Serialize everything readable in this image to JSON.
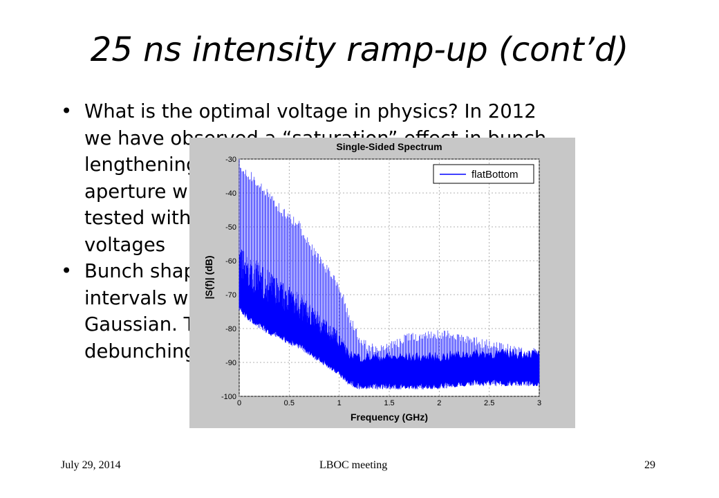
{
  "slide": {
    "title": "25 ns intensity ramp-up (cont’d)",
    "bullets": [
      {
        "lines": [
          "What is the optimal voltage in physics? In 2012",
          "we have observed a “saturation” effect in bunch",
          "lengthening and losses from the momentum",
          "aperture when the voltage was raised. To be",
          "tested with the bunch length at different",
          "voltages"
        ]
      },
      {
        "lines": [
          "Bunch shape — flat bottom profile at regular",
          "intervals when no BU... shapes return to",
          "Gaussian. The small... will increase the risk of",
          "debunching..."
        ]
      }
    ],
    "footer": {
      "date": "July 29, 2014",
      "event": "LBOC meeting",
      "page": "29"
    }
  },
  "chart_data": {
    "type": "line",
    "title": "Single-Sided Spectrum",
    "xlabel": "Frequency (GHz)",
    "ylabel": "|S(f)| (dB)",
    "xlim": [
      0,
      3
    ],
    "ylim": [
      -100,
      -30
    ],
    "xticks": [
      "0",
      "0.5",
      "1",
      "1.5",
      "2",
      "2.5",
      "3"
    ],
    "yticks": [
      "-30",
      "-40",
      "-50",
      "-60",
      "-70",
      "-80",
      "-90",
      "-100"
    ],
    "grid": true,
    "legend": "top-right",
    "series": [
      {
        "name": "flatBottom",
        "color": "#0000ff",
        "x": [
          0,
          0.1,
          0.2,
          0.3,
          0.4,
          0.5,
          0.6,
          0.7,
          0.8,
          0.9,
          1.0,
          1.1,
          1.2,
          1.3,
          1.5,
          1.7,
          2.0,
          2.3,
          2.6,
          3.0
        ],
        "upper": [
          -30,
          -33,
          -36,
          -39,
          -43,
          -46,
          -48,
          -54,
          -58,
          -62,
          -66,
          -75,
          -82,
          -84,
          -84,
          -81,
          -80,
          -82,
          -84,
          -86
        ],
        "lower": [
          -72,
          -75,
          -77,
          -79,
          -80,
          -82,
          -83,
          -85,
          -87,
          -89,
          -91,
          -94,
          -95,
          -95,
          -95,
          -95,
          -95,
          -94,
          -94,
          -94
        ]
      }
    ]
  }
}
